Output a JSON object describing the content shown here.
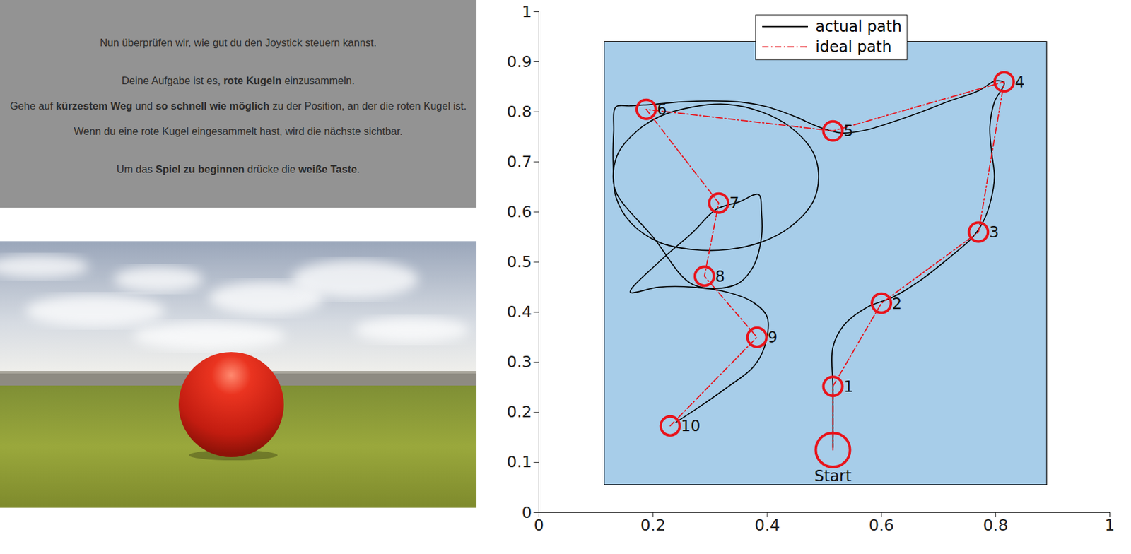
{
  "instructions": {
    "lines": [
      [
        {
          "text": "Nun überprüfen wir, wie gut du den Joystick steuern kannst.",
          "bold": false
        }
      ],
      [
        {
          "text": "Deine Aufgabe ist es, ",
          "bold": false
        },
        {
          "text": "rote Kugeln",
          "bold": true
        },
        {
          "text": " einzusammeln.",
          "bold": false
        }
      ],
      [
        {
          "text": "Gehe auf ",
          "bold": false
        },
        {
          "text": "kürzestem Weg",
          "bold": true
        },
        {
          "text": " und ",
          "bold": false
        },
        {
          "text": "so schnell wie möglich",
          "bold": true
        },
        {
          "text": " zu der Position, an der die roten Kugel ist.",
          "bold": false
        }
      ],
      [
        {
          "text": "Wenn du eine rote Kugel eingesammelt hast, wird die nächste sichtbar.",
          "bold": false
        }
      ],
      [
        {
          "text": "Um das ",
          "bold": false
        },
        {
          "text": "Spiel zu beginnen",
          "bold": true
        },
        {
          "text": " drücke die ",
          "bold": false
        },
        {
          "text": "weiße Taste",
          "bold": true
        },
        {
          "text": ".",
          "bold": false
        }
      ]
    ]
  },
  "chart_data": {
    "type": "line",
    "xlim": [
      0,
      1
    ],
    "ylim": [
      0,
      1
    ],
    "xticks": [
      0,
      0.2,
      0.4,
      0.6,
      0.8,
      1
    ],
    "yticks": [
      0,
      0.1,
      0.2,
      0.3,
      0.4,
      0.5,
      0.6,
      0.7,
      0.8,
      0.9,
      1
    ],
    "legend": "top",
    "arena": {
      "x": [
        0.115,
        0.89
      ],
      "y": [
        0.055,
        0.94
      ],
      "color": "#a7cde9"
    },
    "targets": {
      "color": "#e8141c",
      "marker": "circle",
      "points": [
        {
          "label": "Start",
          "x": 0.515,
          "y": 0.125
        },
        {
          "label": "1",
          "x": 0.515,
          "y": 0.252
        },
        {
          "label": "2",
          "x": 0.6,
          "y": 0.418
        },
        {
          "label": "3",
          "x": 0.77,
          "y": 0.56
        },
        {
          "label": "4",
          "x": 0.815,
          "y": 0.86
        },
        {
          "label": "5",
          "x": 0.515,
          "y": 0.762
        },
        {
          "label": "6",
          "x": 0.188,
          "y": 0.805
        },
        {
          "label": "7",
          "x": 0.315,
          "y": 0.618
        },
        {
          "label": "8",
          "x": 0.29,
          "y": 0.472
        },
        {
          "label": "9",
          "x": 0.382,
          "y": 0.35
        },
        {
          "label": "10",
          "x": 0.23,
          "y": 0.173
        }
      ]
    },
    "series": [
      {
        "name": "actual path",
        "color": "#000000",
        "line_style": "solid",
        "points": [
          [
            0.515,
            0.13
          ],
          [
            0.515,
            0.25
          ],
          [
            0.515,
            0.33
          ],
          [
            0.535,
            0.375
          ],
          [
            0.575,
            0.41
          ],
          [
            0.62,
            0.43
          ],
          [
            0.67,
            0.465
          ],
          [
            0.72,
            0.51
          ],
          [
            0.76,
            0.55
          ],
          [
            0.78,
            0.585
          ],
          [
            0.792,
            0.625
          ],
          [
            0.798,
            0.67
          ],
          [
            0.793,
            0.72
          ],
          [
            0.79,
            0.77
          ],
          [
            0.798,
            0.82
          ],
          [
            0.815,
            0.858
          ],
          [
            0.8,
            0.862
          ],
          [
            0.77,
            0.842
          ],
          [
            0.72,
            0.822
          ],
          [
            0.67,
            0.8
          ],
          [
            0.62,
            0.78
          ],
          [
            0.57,
            0.763
          ],
          [
            0.53,
            0.758
          ],
          [
            0.49,
            0.77
          ],
          [
            0.45,
            0.79
          ],
          [
            0.4,
            0.81
          ],
          [
            0.35,
            0.82
          ],
          [
            0.3,
            0.822
          ],
          [
            0.25,
            0.82
          ],
          [
            0.2,
            0.815
          ],
          [
            0.16,
            0.812
          ],
          [
            0.135,
            0.81
          ],
          [
            0.131,
            0.76
          ],
          [
            0.13,
            0.7
          ],
          [
            0.135,
            0.63
          ],
          [
            0.16,
            0.58
          ],
          [
            0.21,
            0.54
          ],
          [
            0.27,
            0.525
          ],
          [
            0.33,
            0.525
          ],
          [
            0.39,
            0.54
          ],
          [
            0.44,
            0.57
          ],
          [
            0.48,
            0.62
          ],
          [
            0.49,
            0.67
          ],
          [
            0.48,
            0.72
          ],
          [
            0.44,
            0.77
          ],
          [
            0.39,
            0.8
          ],
          [
            0.33,
            0.815
          ],
          [
            0.27,
            0.81
          ],
          [
            0.21,
            0.79
          ],
          [
            0.17,
            0.76
          ],
          [
            0.14,
            0.72
          ],
          [
            0.13,
            0.67
          ],
          [
            0.137,
            0.635
          ],
          [
            0.2,
            0.55
          ],
          [
            0.27,
            0.455
          ],
          [
            0.345,
            0.455
          ],
          [
            0.375,
            0.49
          ],
          [
            0.39,
            0.55
          ],
          [
            0.39,
            0.6
          ],
          [
            0.385,
            0.635
          ],
          [
            0.35,
            0.62
          ],
          [
            0.31,
            0.605
          ],
          [
            0.27,
            0.56
          ],
          [
            0.21,
            0.5
          ],
          [
            0.16,
            0.44
          ],
          [
            0.21,
            0.45
          ],
          [
            0.27,
            0.45
          ],
          [
            0.33,
            0.44
          ],
          [
            0.375,
            0.42
          ],
          [
            0.4,
            0.39
          ],
          [
            0.395,
            0.33
          ],
          [
            0.375,
            0.29
          ],
          [
            0.33,
            0.25
          ],
          [
            0.28,
            0.21
          ],
          [
            0.24,
            0.18
          ]
        ]
      },
      {
        "name": "ideal path",
        "color": "#e8141c",
        "line_style": "dashdot"
      }
    ]
  }
}
